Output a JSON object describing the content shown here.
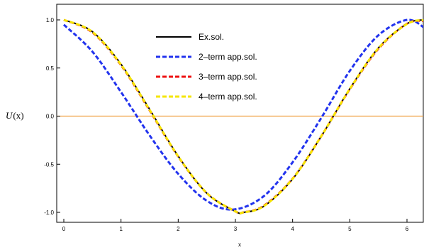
{
  "chart_data": {
    "type": "line",
    "title": "",
    "xlabel": "x",
    "ylabel": "U(x)",
    "ylabel_main": "U",
    "ylabel_arg": "(x)",
    "xlim": [
      0,
      6.3
    ],
    "ylim": [
      -1.1,
      1.1
    ],
    "xticks": [
      0,
      1,
      2,
      3,
      4,
      5,
      6
    ],
    "xtick_labels": [
      "0",
      "1",
      "2",
      "3",
      "4",
      "5",
      "6"
    ],
    "yticks": [
      -1.0,
      -0.5,
      0.0,
      0.5,
      1.0
    ],
    "ytick_labels": [
      "-1.0",
      "-0.5",
      "0.0",
      "0.5",
      "1.0"
    ],
    "grid": false,
    "legend_position": "top-center",
    "reference_line": {
      "y": 0,
      "color": "#f0a040"
    },
    "series": [
      {
        "name": "Ex.sol.",
        "color": "#000000",
        "dash": "solid",
        "x": [
          0,
          0.5,
          1.0,
          1.5,
          2.0,
          2.5,
          3.0,
          3.14,
          3.5,
          4.0,
          4.5,
          5.0,
          5.5,
          6.0,
          6.3
        ],
        "y": [
          1.0,
          0.878,
          0.54,
          0.071,
          -0.416,
          -0.801,
          -0.99,
          -1.0,
          -0.936,
          -0.654,
          -0.211,
          0.284,
          0.709,
          0.96,
          1.0
        ]
      },
      {
        "name": "2–term app.sol.",
        "color": "#2233ee",
        "dash": "dashed",
        "x": [
          0,
          0.5,
          1.0,
          1.5,
          2.0,
          2.5,
          2.97,
          3.5,
          4.0,
          4.5,
          5.0,
          5.5,
          6.0,
          6.3
        ],
        "y": [
          0.95,
          0.67,
          0.25,
          -0.2,
          -0.6,
          -0.88,
          -0.97,
          -0.83,
          -0.48,
          -0.02,
          0.47,
          0.84,
          1.0,
          0.92
        ]
      },
      {
        "name": "3–term app.sol.",
        "color": "#ee1111",
        "dash": "dashed",
        "x": [
          0,
          0.5,
          1.0,
          1.5,
          2.0,
          2.5,
          3.0,
          3.14,
          3.5,
          4.0,
          4.5,
          5.0,
          5.5,
          6.0,
          6.3
        ],
        "y": [
          1.0,
          0.87,
          0.53,
          0.06,
          -0.42,
          -0.8,
          -0.99,
          -1.0,
          -0.93,
          -0.65,
          -0.21,
          0.28,
          0.7,
          0.96,
          0.99
        ]
      },
      {
        "name": "4–term app.sol.",
        "color": "#f5e600",
        "dash": "dashed",
        "x": [
          0,
          0.5,
          1.0,
          1.5,
          2.0,
          2.5,
          3.0,
          3.14,
          3.5,
          4.0,
          4.5,
          5.0,
          5.5,
          6.0,
          6.3
        ],
        "y": [
          1.0,
          0.875,
          0.535,
          0.065,
          -0.418,
          -0.8,
          -0.99,
          -1.0,
          -0.934,
          -0.652,
          -0.209,
          0.283,
          0.706,
          0.958,
          0.998
        ]
      }
    ]
  }
}
